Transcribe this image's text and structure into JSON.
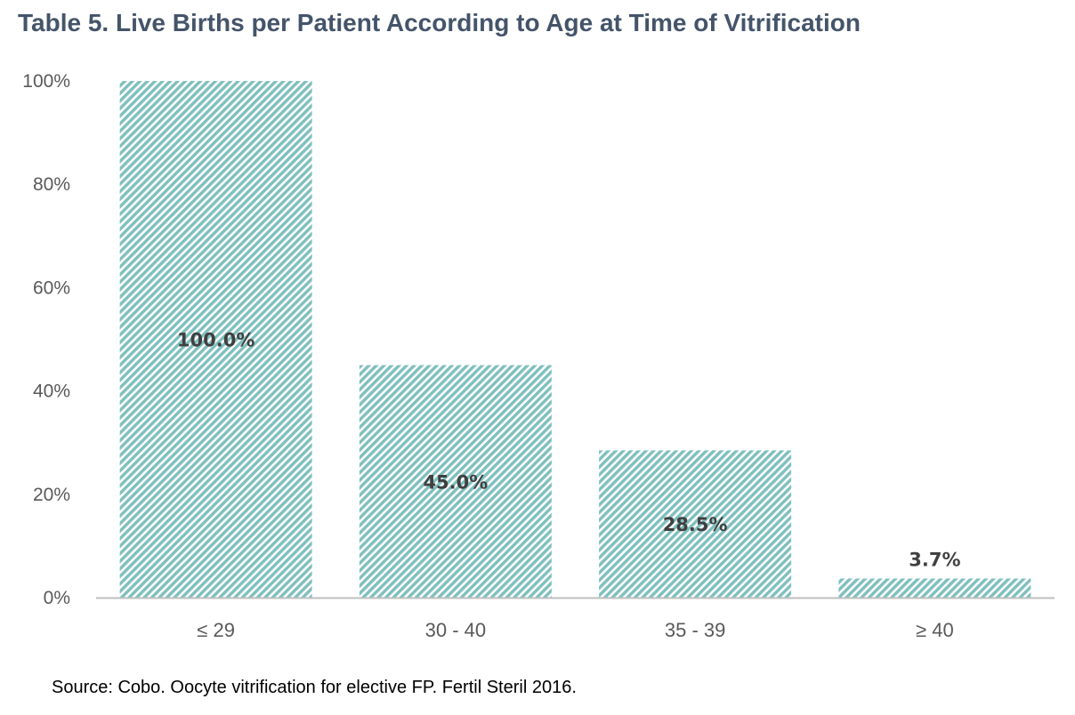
{
  "chart_data": {
    "type": "bar",
    "title": "Table 5. Live Births per Patient According to Age at Time of Vitrification",
    "categories": [
      "≤ 29",
      "30 - 40",
      "35 - 39",
      "≥ 40"
    ],
    "values": [
      100.0,
      45.0,
      28.5,
      3.7
    ],
    "data_labels": [
      "100.0%",
      "45.0%",
      "28.5%",
      "3.7%"
    ],
    "ylim": [
      0,
      100
    ],
    "yticks": [
      0,
      20,
      40,
      60,
      80,
      100
    ],
    "ytick_labels": [
      "0%",
      "20%",
      "40%",
      "60%",
      "80%",
      "100%"
    ],
    "xlabel": "",
    "ylabel": "",
    "grid": false,
    "legend": "none",
    "bar_color": "#7FBFBF",
    "bar_pattern": "diagonal-hatch"
  },
  "source": "Source: Cobo. Oocyte vitrification for elective FP. Fertil Steril 2016."
}
